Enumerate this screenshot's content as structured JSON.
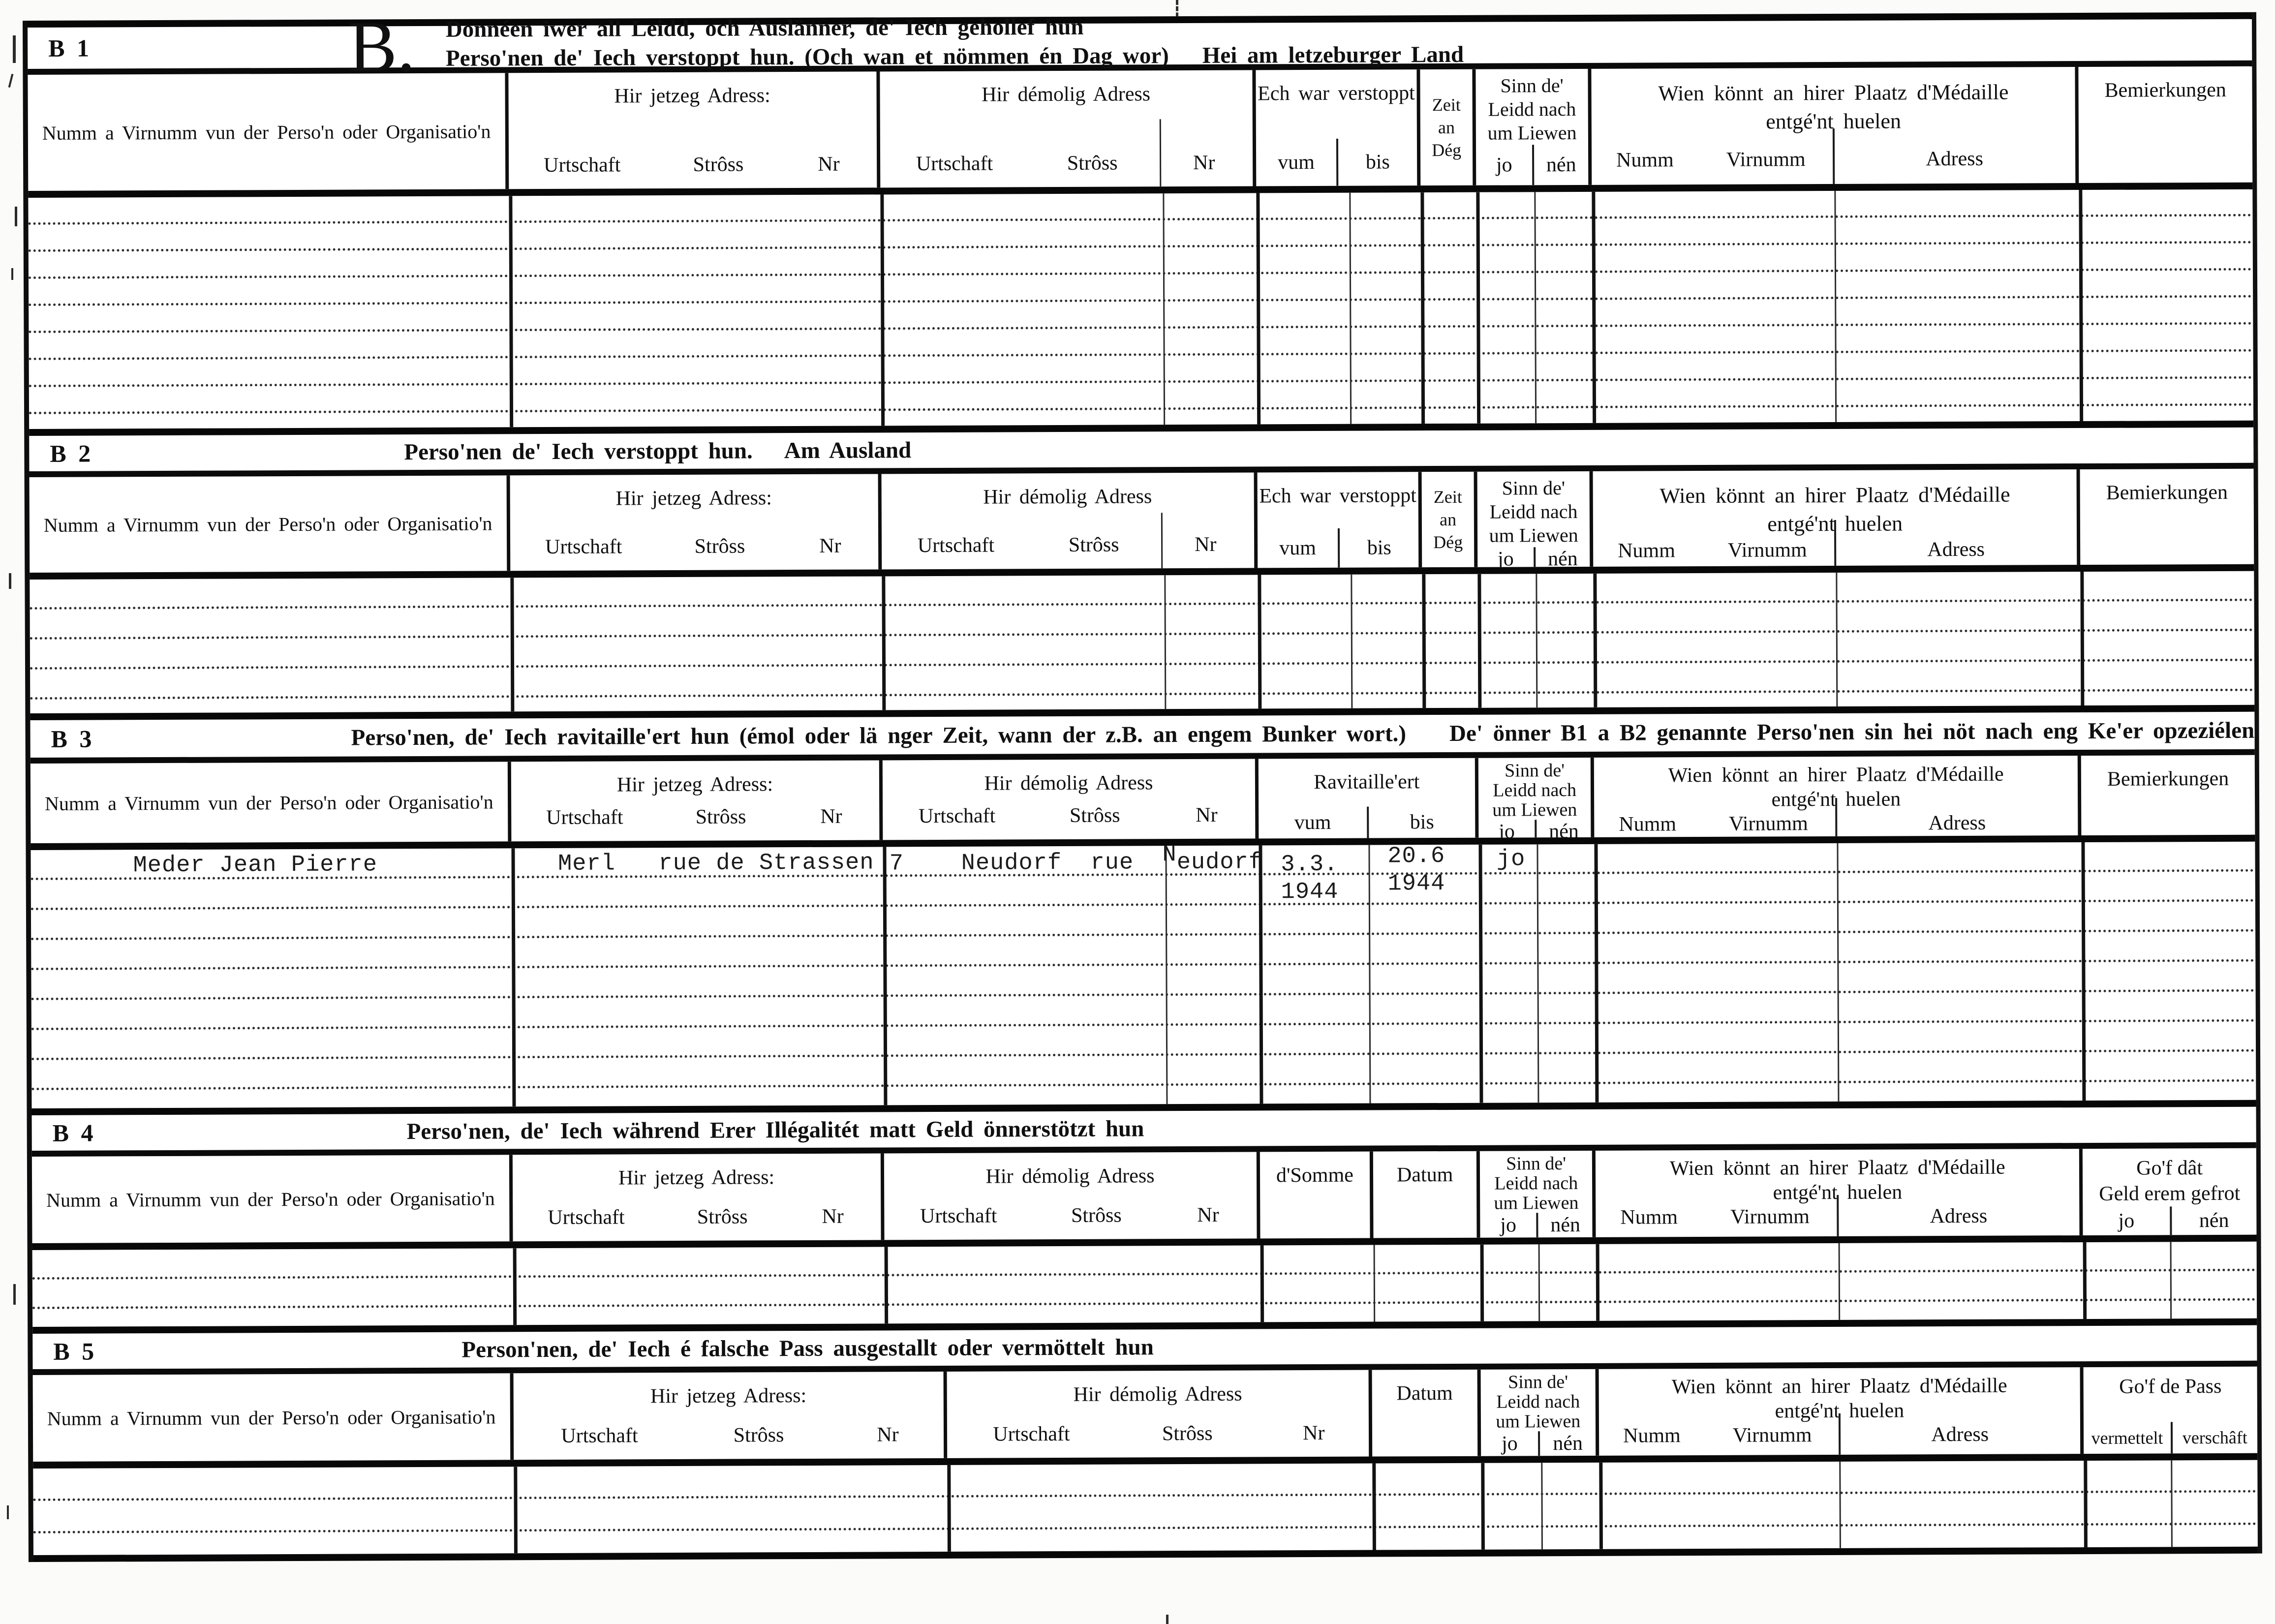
{
  "page": {
    "colors": {
      "ink": "#111111",
      "paper": "#ffffff"
    },
    "sections": [
      {
        "id": "B 1",
        "big_letter": "B.",
        "title_lines": [
          "Donnéen iwer all Leidd, och Auslänner, de' Iech gehollef hun",
          "Perso'nen de' Iech verstoppt hun. (Och wan et nömmen én Dag wor)"
        ],
        "title_suffix": "Hei am letzeburger Land"
      },
      {
        "id": "B 2",
        "title": "Perso'nen de' Iech verstoppt hun.",
        "title_suffix": "Am Ausland"
      },
      {
        "id": "B 3",
        "title": "Perso'nen, de' Iech ravitaille'ert hun (émol oder lä nger Zeit, wann der z.B. an engem Bunker wort.)",
        "title_suffix": "De' önner B1 a B2 genannte Perso'nen sin hei nöt nach eng Ke'er opzeziélen"
      },
      {
        "id": "B 4",
        "title": "Perso'nen, de' Iech während Erer Illégalitét matt Geld önnerstötzt hun"
      },
      {
        "id": "B 5",
        "title": "Person'nen, de' Iech é falsche Pass ausgestallt oder  vermöttelt hun"
      }
    ],
    "labels": {
      "name_col": "Numm a Virnumm vun der Perso'n oder Organisatio'n",
      "jetzeg": "Hir jetzeg Adress:",
      "demolig": "Hir démolig Adress",
      "urtschaft": "Urtschaft",
      "stross": "Strôss",
      "nr": "Nr",
      "verstoppt": "Ech war verstoppt",
      "ravitailleert": "Ravitaille'ert",
      "vum": "vum",
      "bis": "bis",
      "zeit": [
        "Zeit",
        "an",
        "Dég"
      ],
      "sinn": [
        "Sinn de'",
        "Leidd nach",
        "um Liewen"
      ],
      "jo": "jo",
      "nen": "nén",
      "wien": [
        "Wien könnt an hirer Plaatz d'Médaille",
        "entgé'nt huelen"
      ],
      "numm": "Numm",
      "virnumm": "Virnumm",
      "adress": "Adress",
      "bemierkungen": "Bemierkungen",
      "somme": "d'Somme",
      "datum": "Datum",
      "gof_geld": [
        "Go'f dât",
        "Geld erem gefrot"
      ],
      "gof_pass": "Go'f de Pass",
      "vermettelt": "vermettelt",
      "verschaeft": "verschâft"
    },
    "entry": {
      "name": "Meder Jean Pierre",
      "jetzeg": "Merl   rue de Strassen",
      "demolig_pre": "7    Neudorf  rue  ",
      "demolig_raised": "N",
      "demolig_post": "eudorf",
      "vum": [
        "3.3.",
        "1944"
      ],
      "bis": [
        "20.6",
        "1944"
      ],
      "sinn_jo": "jo"
    }
  }
}
